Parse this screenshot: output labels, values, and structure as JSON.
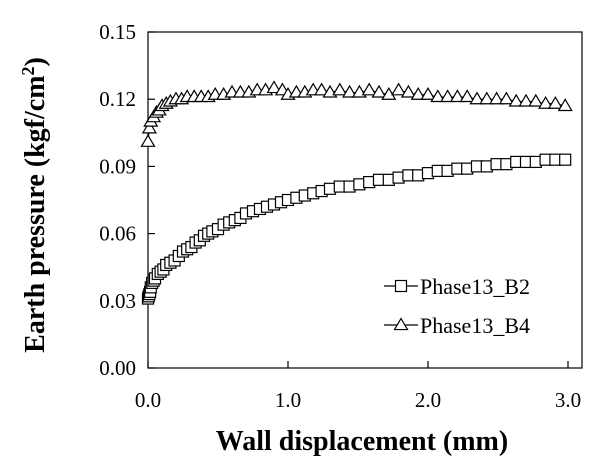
{
  "chart_data": {
    "type": "scatter",
    "title": "",
    "xlabel": "Wall displacement (mm)",
    "ylabel": "Earth pressure (kgf/cm",
    "ylabel_sup": "2",
    "ylabel_close": ")",
    "xlim": [
      0,
      3.1
    ],
    "ylim": [
      0,
      0.15
    ],
    "xticks": [
      0.0,
      1.0,
      2.0,
      3.0
    ],
    "xtick_labels": [
      "0.0",
      "1.0",
      "2.0",
      "3.0"
    ],
    "yticks": [
      0.0,
      0.03,
      0.06,
      0.09,
      0.12,
      0.15
    ],
    "ytick_labels": [
      "0.00",
      "0.03",
      "0.06",
      "0.09",
      "0.12",
      "0.15"
    ],
    "grid": false,
    "legend_position": "bottom-right",
    "series": [
      {
        "name": "Phase13_B2",
        "marker": "square",
        "x": [
          0.0,
          0.005,
          0.01,
          0.015,
          0.02,
          0.03,
          0.04,
          0.05,
          0.07,
          0.09,
          0.11,
          0.13,
          0.16,
          0.19,
          0.22,
          0.25,
          0.28,
          0.31,
          0.34,
          0.37,
          0.4,
          0.43,
          0.46,
          0.5,
          0.54,
          0.58,
          0.62,
          0.66,
          0.7,
          0.75,
          0.8,
          0.85,
          0.9,
          0.95,
          1.0,
          1.06,
          1.12,
          1.18,
          1.24,
          1.3,
          1.37,
          1.44,
          1.51,
          1.58,
          1.65,
          1.72,
          1.79,
          1.86,
          1.93,
          2.0,
          2.07,
          2.14,
          2.21,
          2.28,
          2.35,
          2.42,
          2.49,
          2.56,
          2.63,
          2.7,
          2.77,
          2.84,
          2.91,
          2.98
        ],
        "y": [
          0.031,
          0.032,
          0.033,
          0.034,
          0.036,
          0.038,
          0.039,
          0.04,
          0.042,
          0.043,
          0.044,
          0.046,
          0.047,
          0.048,
          0.05,
          0.052,
          0.053,
          0.054,
          0.056,
          0.057,
          0.059,
          0.06,
          0.061,
          0.062,
          0.064,
          0.065,
          0.066,
          0.067,
          0.069,
          0.07,
          0.071,
          0.072,
          0.073,
          0.074,
          0.075,
          0.076,
          0.077,
          0.078,
          0.079,
          0.08,
          0.081,
          0.081,
          0.082,
          0.083,
          0.084,
          0.084,
          0.085,
          0.086,
          0.086,
          0.087,
          0.088,
          0.088,
          0.089,
          0.089,
          0.09,
          0.09,
          0.091,
          0.091,
          0.092,
          0.092,
          0.092,
          0.093,
          0.093,
          0.093
        ]
      },
      {
        "name": "Phase13_B4",
        "marker": "triangle",
        "x": [
          0.0,
          0.01,
          0.02,
          0.04,
          0.06,
          0.08,
          0.1,
          0.13,
          0.16,
          0.2,
          0.24,
          0.28,
          0.33,
          0.38,
          0.43,
          0.48,
          0.54,
          0.6,
          0.66,
          0.72,
          0.78,
          0.84,
          0.9,
          0.96,
          1.0,
          1.06,
          1.12,
          1.18,
          1.24,
          1.3,
          1.37,
          1.44,
          1.51,
          1.58,
          1.65,
          1.72,
          1.79,
          1.86,
          1.93,
          2.0,
          2.07,
          2.14,
          2.21,
          2.28,
          2.35,
          2.42,
          2.49,
          2.56,
          2.63,
          2.7,
          2.77,
          2.84,
          2.91,
          2.98
        ],
        "y": [
          0.101,
          0.107,
          0.11,
          0.112,
          0.114,
          0.115,
          0.117,
          0.118,
          0.119,
          0.12,
          0.12,
          0.121,
          0.121,
          0.121,
          0.121,
          0.122,
          0.122,
          0.123,
          0.123,
          0.123,
          0.124,
          0.124,
          0.125,
          0.124,
          0.122,
          0.123,
          0.123,
          0.124,
          0.124,
          0.123,
          0.124,
          0.123,
          0.123,
          0.124,
          0.123,
          0.122,
          0.124,
          0.123,
          0.122,
          0.122,
          0.121,
          0.121,
          0.121,
          0.121,
          0.12,
          0.12,
          0.12,
          0.12,
          0.119,
          0.119,
          0.119,
          0.118,
          0.118,
          0.117
        ]
      }
    ]
  }
}
